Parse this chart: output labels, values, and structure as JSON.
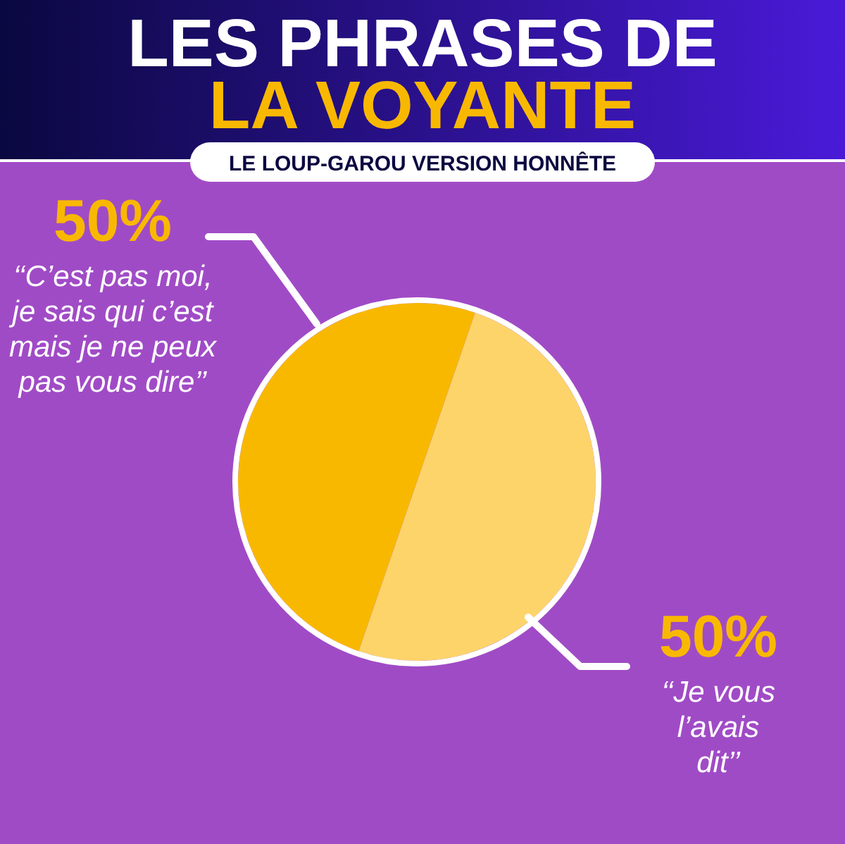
{
  "chart_data": {
    "type": "pie",
    "title": "LES PHRASES DE LA VOYANTE",
    "subtitle": "LE LOUP-GAROU VERSION HONNÊTE",
    "categories": [
      "‘‘C’est pas moi, je sais qui c’est mais je ne peux pas vous dire’’",
      "‘‘Je vous l’avais dit’’"
    ],
    "values": [
      50,
      50
    ],
    "colors": [
      "#f9b800",
      "#fdd46a"
    ],
    "value_labels": [
      "50%",
      "50%"
    ]
  }
}
